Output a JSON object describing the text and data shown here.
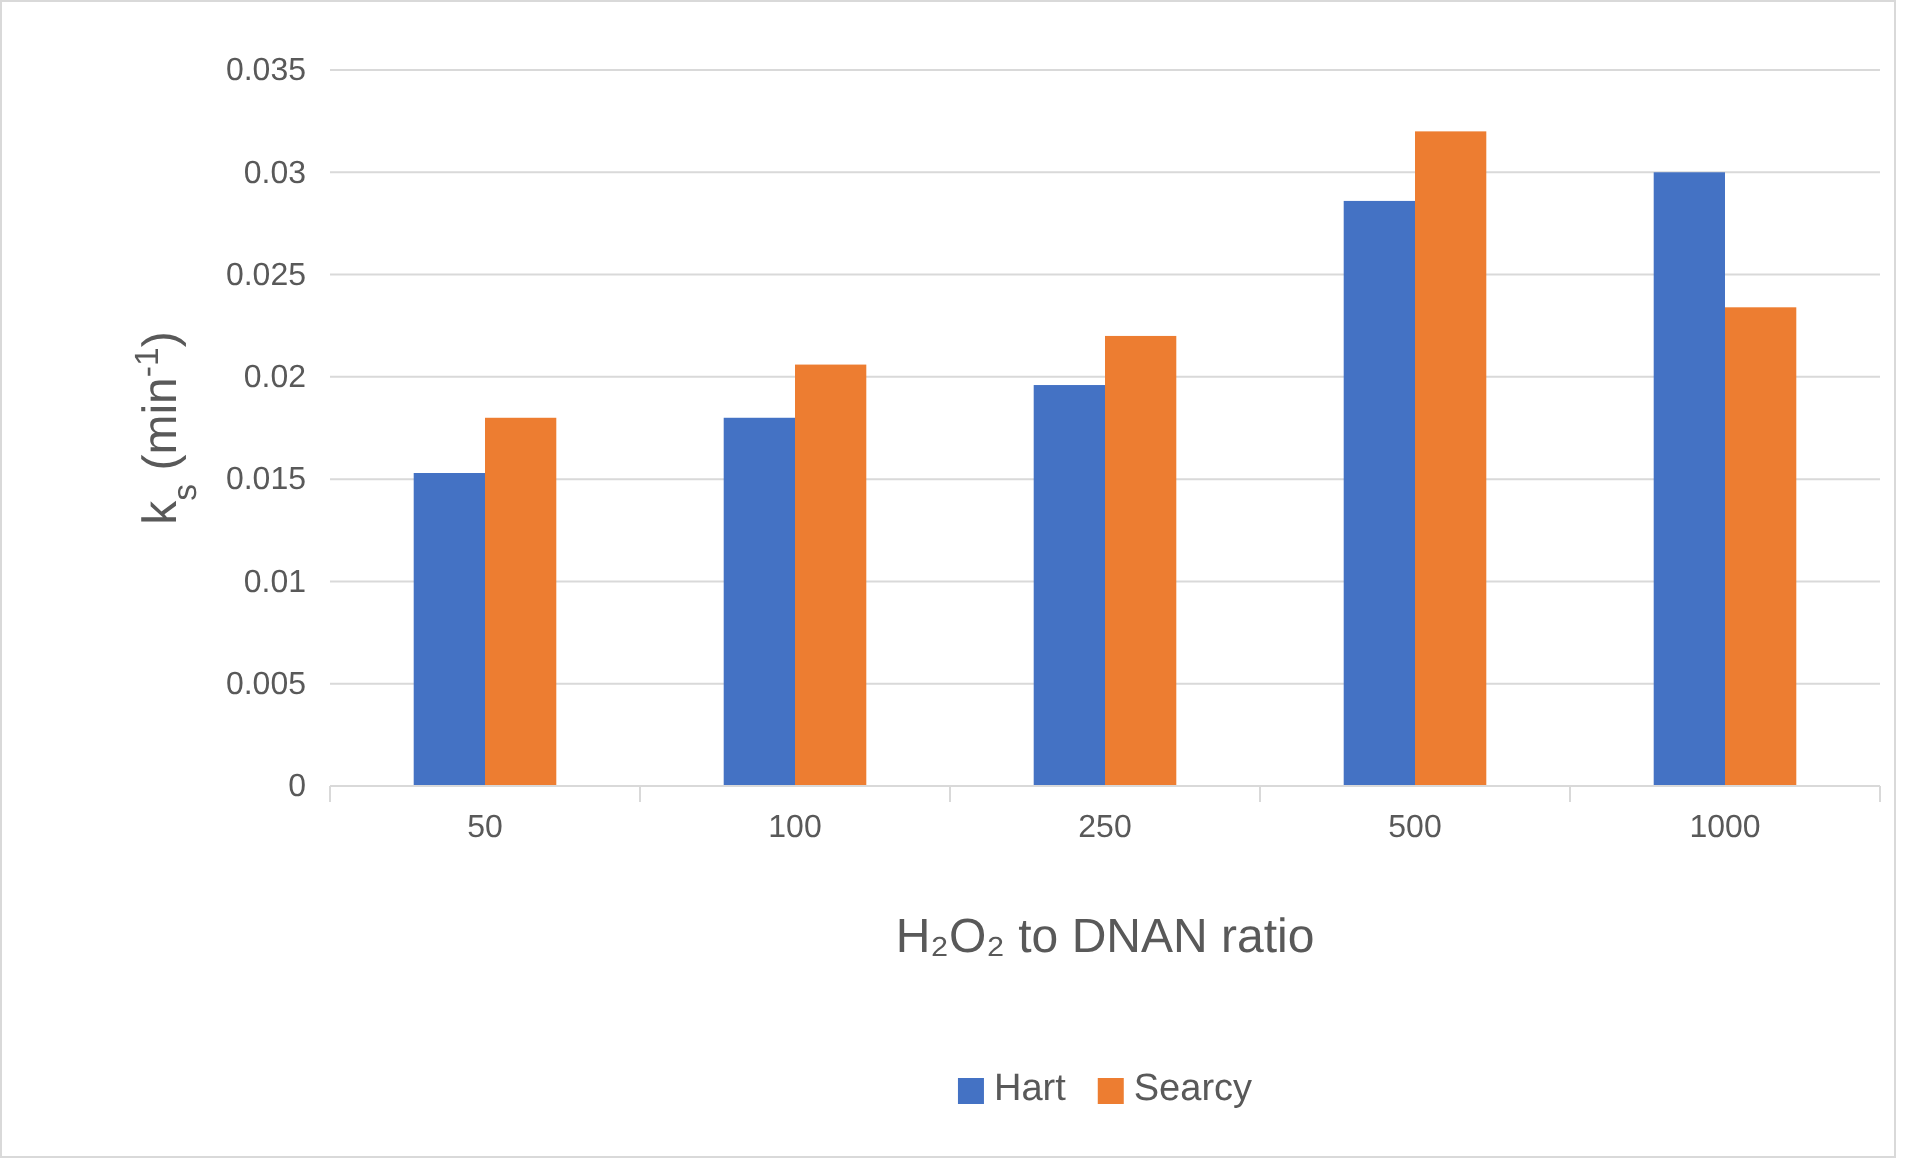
{
  "chart_data": {
    "type": "bar",
    "categories": [
      "50",
      "100",
      "250",
      "500",
      "1000"
    ],
    "series": [
      {
        "name": "Hart",
        "color": "#4472c4",
        "values": [
          0.0153,
          0.018,
          0.0196,
          0.0286,
          0.03
        ]
      },
      {
        "name": "Searcy",
        "color": "#ed7d31",
        "values": [
          0.018,
          0.0206,
          0.022,
          0.032,
          0.0234
        ]
      }
    ],
    "xlabel": "H₂O₂ to DNAN ratio",
    "ylabel": "k$_{s}$ (min$^{-1}$)",
    "ylim": [
      0,
      0.035
    ],
    "yticks": [
      0,
      0.005,
      0.01,
      0.015,
      0.02,
      0.025,
      0.03,
      0.035
    ],
    "grid": "y",
    "legend": "bottom"
  }
}
